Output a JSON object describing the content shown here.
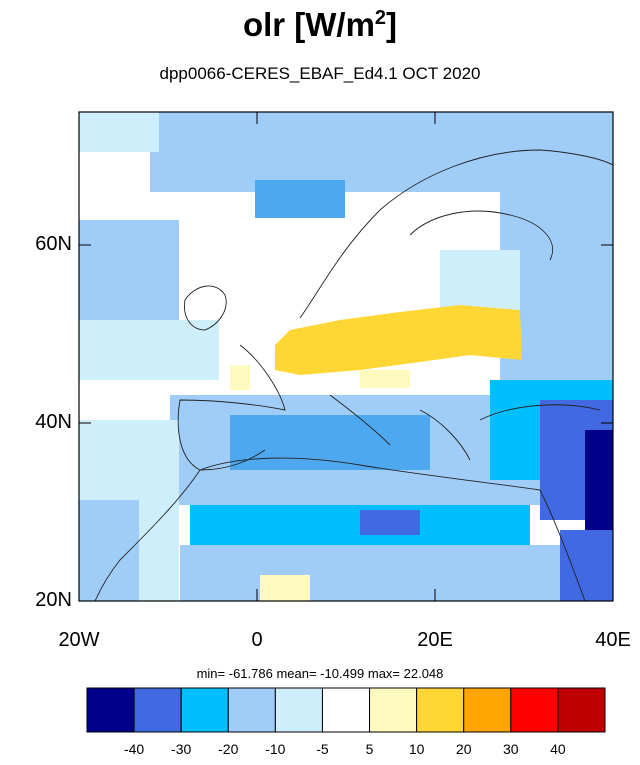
{
  "title": {
    "main": "olr [W/m",
    "sup": "2",
    "close": "]"
  },
  "subtitle": "dpp0066-CERES_EBAF_Ed4.1  OCT 2020",
  "chart_data": {
    "type": "heatmap",
    "title": "olr [W/m2]",
    "subtitle": "dpp0066-CERES_EBAF_Ed4.1  OCT 2020",
    "xlim": [
      -20,
      40
    ],
    "ylim": [
      20,
      75
    ],
    "x_ticks": [
      "20W",
      "0",
      "20E",
      "40E"
    ],
    "y_ticks": [
      "20N",
      "40N",
      "60N"
    ],
    "stats": {
      "min": "-61.786",
      "mean": "-10.499",
      "max": "22.048"
    },
    "colorbar": {
      "levels": [
        "-40",
        "-30",
        "-20",
        "-10",
        "-5",
        "5",
        "10",
        "20",
        "30",
        "40"
      ],
      "colors": [
        "#00008b",
        "#4169e1",
        "#00bfff",
        "#a0cdf8",
        "#cfeefc",
        "#ffffff",
        "#fffbc0",
        "#ffd735",
        "#ffa500",
        "#ff0000",
        "#c00000"
      ]
    }
  },
  "stats_line": "min= -61.786  mean= -10.499  max=  22.048"
}
